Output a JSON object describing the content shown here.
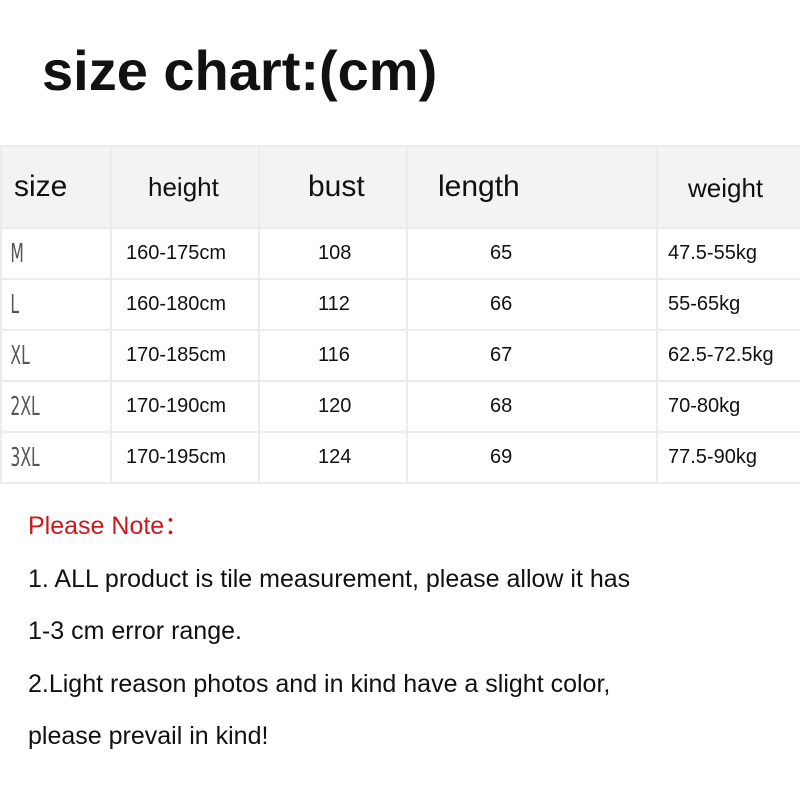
{
  "title": "size chart:(cm)",
  "table": {
    "headers": [
      "size",
      "height",
      "bust",
      "length",
      "weight"
    ],
    "rows": [
      {
        "size": "M",
        "height": "160-175cm",
        "bust": "108",
        "length": "65",
        "weight": "47.5-55kg"
      },
      {
        "size": "L",
        "height": "160-180cm",
        "bust": "112",
        "length": "66",
        "weight": "55-65kg"
      },
      {
        "size": "XL",
        "height": "170-185cm",
        "bust": "116",
        "length": "67",
        "weight": "62.5-72.5kg"
      },
      {
        "size": "2XL",
        "height": "170-190cm",
        "bust": "120",
        "length": "68",
        "weight": "70-80kg"
      },
      {
        "size": "3XL",
        "height": "170-195cm",
        "bust": "124",
        "length": "69",
        "weight": "77.5-90kg"
      }
    ]
  },
  "notes": {
    "title": "Please Note：",
    "title_color": "#c8191d",
    "lines": [
      "1. ALL product is tile measurement, please allow it has",
      "1-3 cm error range.",
      "2.Light reason photos and in kind have a slight color,",
      "please prevail in kind!"
    ]
  }
}
